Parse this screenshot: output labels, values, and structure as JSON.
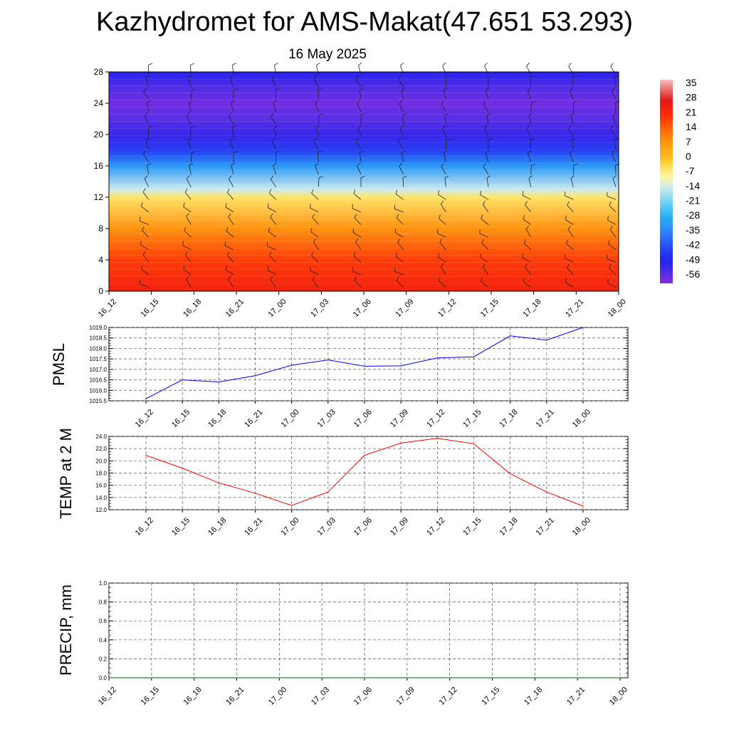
{
  "title": "Kazhydromet for AMS-Makat(47.651 53.293)",
  "subtitle": "16 May 2025",
  "time_labels": [
    "16_12",
    "16_15",
    "16_18",
    "16_21",
    "17_00",
    "17_03",
    "17_06",
    "17_09",
    "17_12",
    "17_15",
    "17_18",
    "17_21",
    "18_00"
  ],
  "chart_data": [
    {
      "type": "heatmap",
      "name": "temperature-height-section",
      "x": [
        "16_12",
        "16_15",
        "16_18",
        "16_21",
        "17_00",
        "17_03",
        "17_06",
        "17_09",
        "17_12",
        "17_15",
        "17_18",
        "17_21",
        "18_00"
      ],
      "yticks": [
        "0",
        "4",
        "8",
        "12",
        "16",
        "20",
        "24",
        "28"
      ],
      "ylim": [
        0,
        28
      ],
      "temperature_profile_levels": [
        0,
        4,
        8,
        12,
        13,
        16,
        18,
        20,
        22,
        24,
        26,
        28
      ],
      "temperature_profile_values": [
        24,
        19,
        8,
        -5,
        -14,
        -32,
        -45,
        -52,
        -56,
        -58,
        -55,
        -50
      ],
      "colorbar": {
        "labels": [
          "35",
          "28",
          "21",
          "14",
          "7",
          "0",
          "-7",
          "-14",
          "-21",
          "-28",
          "-35",
          "-42",
          "-49",
          "-56"
        ],
        "range": [
          -60,
          38
        ]
      },
      "wind_barbs": true
    },
    {
      "type": "line",
      "name": "pmsl",
      "ylabel": "PMSL",
      "x": [
        "16_12",
        "16_15",
        "16_18",
        "16_21",
        "17_00",
        "17_03",
        "17_06",
        "17_09",
        "17_12",
        "17_15",
        "17_18",
        "17_21",
        "18_00"
      ],
      "values": [
        1015.6,
        1016.5,
        1016.4,
        1016.7,
        1017.2,
        1017.45,
        1017.15,
        1017.17,
        1017.55,
        1017.6,
        1018.6,
        1018.4,
        1019.0
      ],
      "ylim": [
        1015.5,
        1019.0
      ],
      "yticks": [
        "1015.5",
        "1016.0",
        "1016.5",
        "1017.0",
        "1017.5",
        "1018.0",
        "1018.5",
        "1019.0"
      ],
      "color": "#0000ff",
      "grid": true
    },
    {
      "type": "line",
      "name": "temp-2m",
      "ylabel": "TEMP at 2 M",
      "x": [
        "16_12",
        "16_15",
        "16_18",
        "16_21",
        "17_00",
        "17_03",
        "17_06",
        "17_09",
        "17_12",
        "17_15",
        "17_18",
        "17_21",
        "18_00"
      ],
      "values": [
        20.9,
        18.8,
        16.4,
        14.7,
        12.7,
        14.9,
        20.9,
        22.9,
        23.7,
        22.8,
        17.9,
        14.9,
        12.6
      ],
      "ylim": [
        12.0,
        24.0
      ],
      "yticks": [
        "12.0",
        "14.0",
        "16.0",
        "18.0",
        "20.0",
        "22.0",
        "24.0"
      ],
      "color": "#ff0000",
      "grid": true
    },
    {
      "type": "line",
      "name": "precip",
      "ylabel": "PRECIP, mm",
      "x": [
        "16_12",
        "16_15",
        "16_18",
        "16_21",
        "17_00",
        "17_03",
        "17_06",
        "17_09",
        "17_12",
        "17_15",
        "17_18",
        "17_21",
        "18_00"
      ],
      "values": [
        0,
        0,
        0,
        0,
        0,
        0,
        0,
        0,
        0,
        0,
        0,
        0,
        0
      ],
      "ylim": [
        0.0,
        1.0
      ],
      "yticks": [
        "0.0",
        "0.2",
        "0.4",
        "0.6",
        "0.8",
        "1.0"
      ],
      "color": "#006400",
      "grid": true
    }
  ]
}
